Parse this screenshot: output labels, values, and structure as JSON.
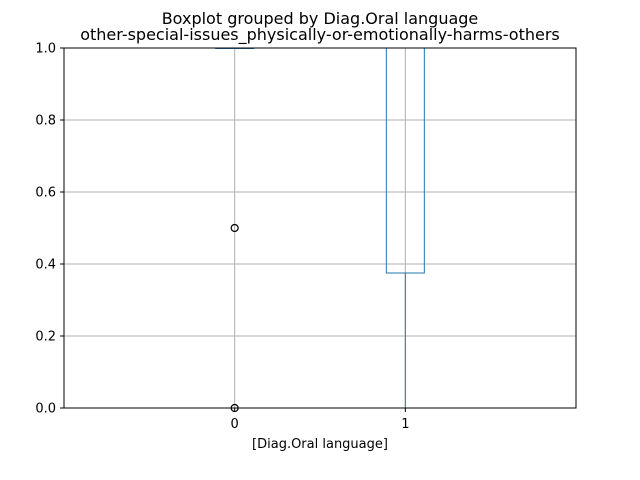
{
  "chart_data": {
    "type": "box",
    "title": "Boxplot grouped by Diag.Oral language",
    "subtitle": "other-special-issues_physically-or-emotionally-harms-others",
    "xlabel": "[Diag.Oral language]",
    "ylabel": "",
    "categories": [
      "0",
      "1"
    ],
    "ylim": [
      0.0,
      1.0
    ],
    "yticks": [
      "0.0",
      "0.2",
      "0.4",
      "0.6",
      "0.8",
      "1.0"
    ],
    "grid": true,
    "boxes": [
      {
        "category": "0",
        "whisker_low": 1.0,
        "q1": 1.0,
        "median": 1.0,
        "q3": 1.0,
        "whisker_high": 1.0,
        "outliers": [
          0.5,
          0.0
        ]
      },
      {
        "category": "1",
        "whisker_low": 0.0,
        "q1": 0.375,
        "median": 1.0,
        "q3": 1.0,
        "whisker_high": 1.0,
        "outliers": []
      }
    ],
    "colors": {
      "box": "#1f77b4",
      "median": "#2ca02c",
      "outlier": "#000000",
      "grid": "#b0b0b0"
    }
  }
}
